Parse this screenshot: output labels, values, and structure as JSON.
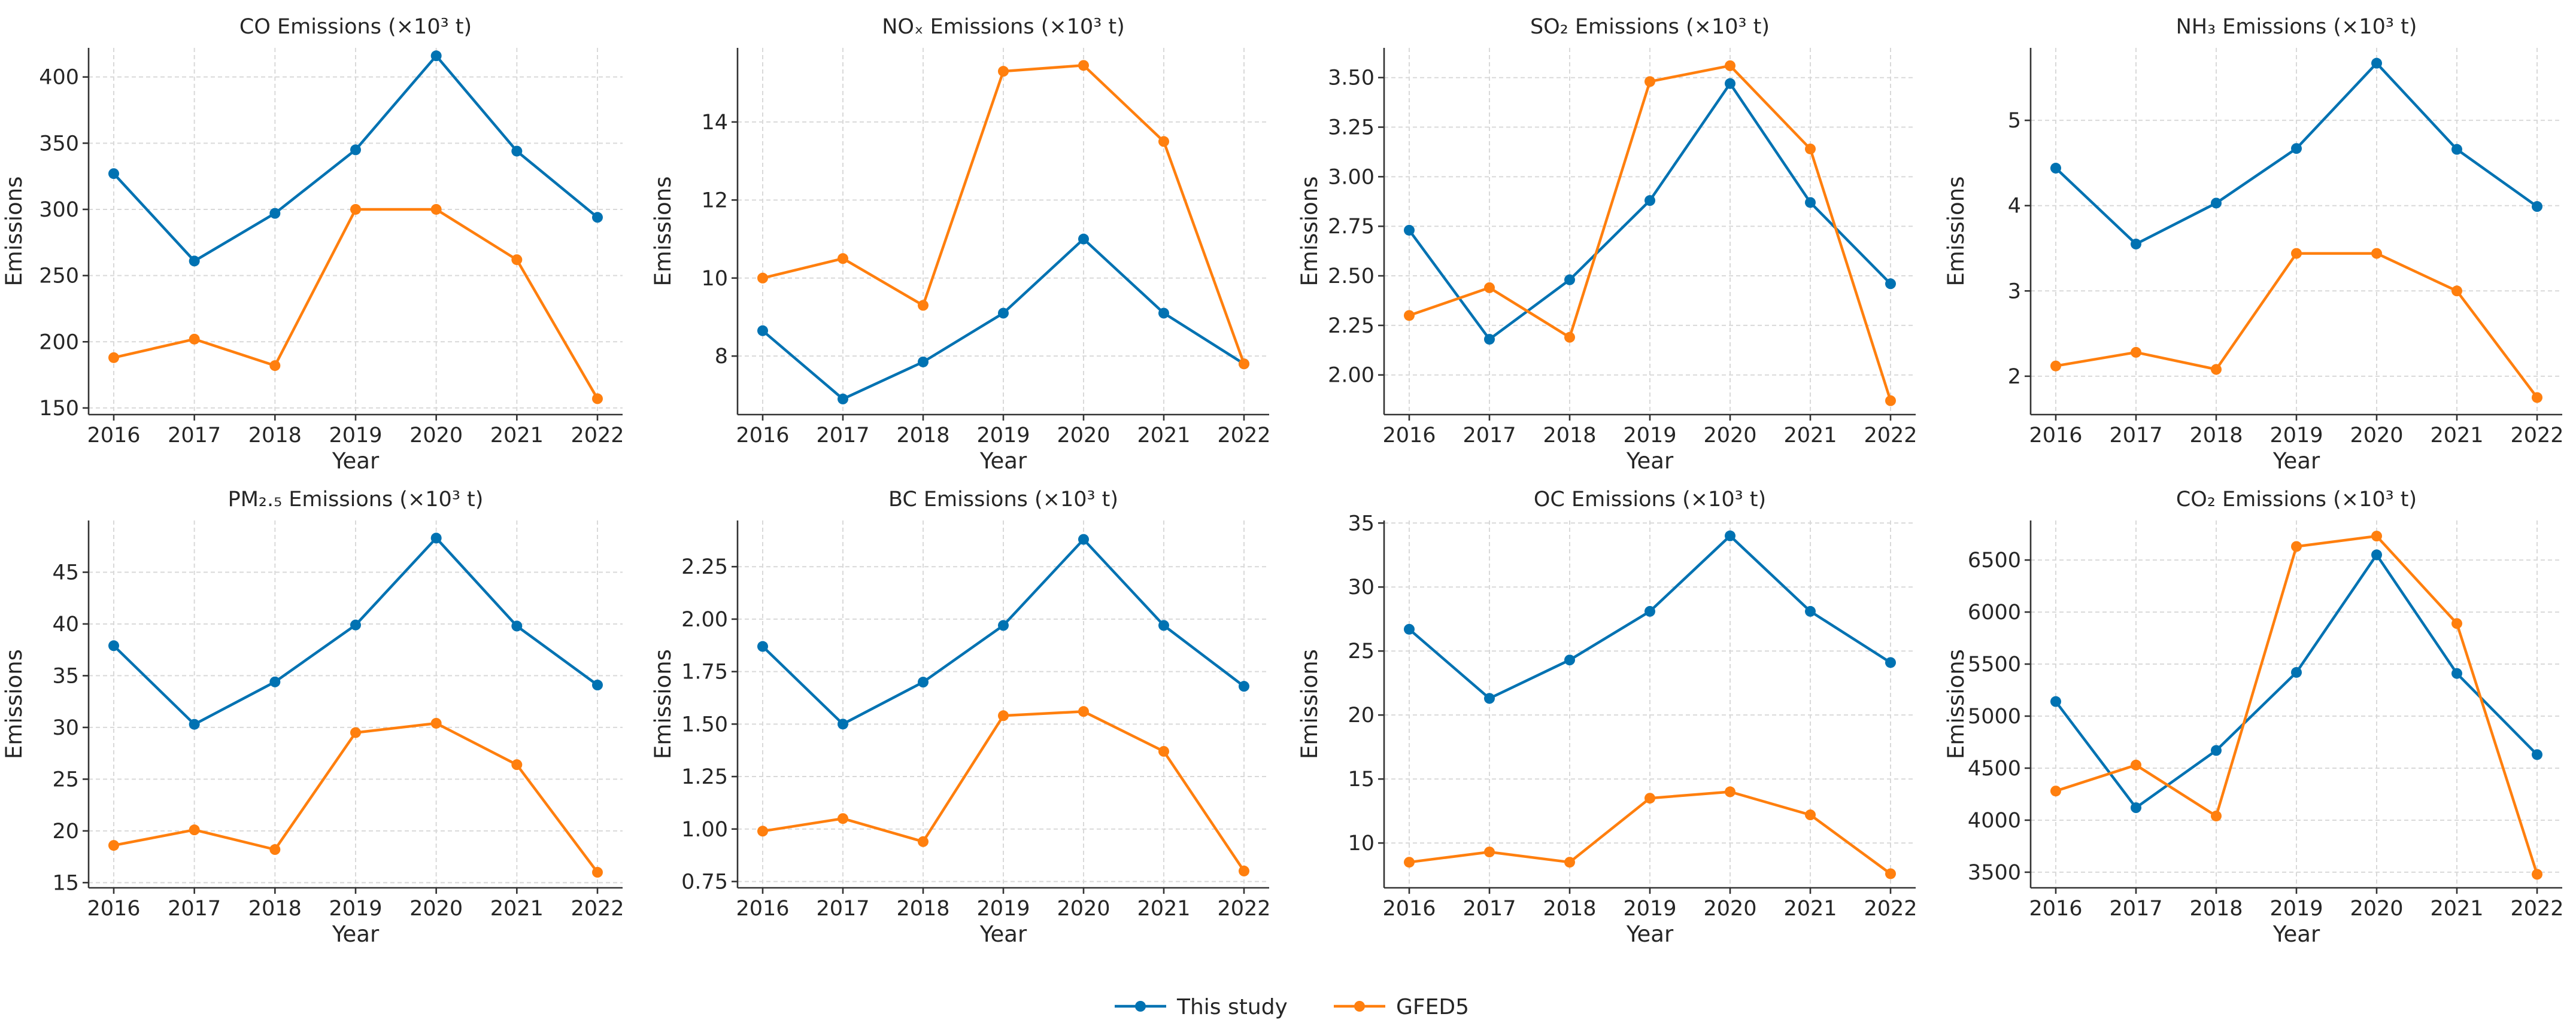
{
  "legend": [
    {
      "name": "This study",
      "color": "#0072B2"
    },
    {
      "name": "GFED5",
      "color": "#FF7F0E"
    }
  ],
  "chart_data": [
    {
      "type": "line",
      "title": "CO Emissions (×10³ t)",
      "xlabel": "Year",
      "ylabel": "Emissions",
      "x": [
        2016,
        2017,
        2018,
        2019,
        2020,
        2021,
        2022
      ],
      "yticks": [
        150,
        200,
        250,
        300,
        350,
        400
      ],
      "ylim": [
        145,
        422
      ],
      "grid": true,
      "series": [
        {
          "name": "This study",
          "values": [
            327,
            261,
            297,
            345,
            416,
            344,
            294
          ]
        },
        {
          "name": "GFED5",
          "values": [
            188,
            202,
            182,
            300,
            300,
            262,
            157
          ]
        }
      ]
    },
    {
      "type": "line",
      "title": "NOₓ Emissions (×10³ t)",
      "xlabel": "Year",
      "ylabel": "Emissions",
      "x": [
        2016,
        2017,
        2018,
        2019,
        2020,
        2021,
        2022
      ],
      "yticks": [
        8,
        10,
        12,
        14
      ],
      "ylim": [
        6.5,
        15.9
      ],
      "grid": true,
      "series": [
        {
          "name": "This study",
          "values": [
            8.65,
            6.9,
            7.85,
            9.1,
            11.0,
            9.1,
            7.8
          ]
        },
        {
          "name": "GFED5",
          "values": [
            10.0,
            10.5,
            9.3,
            15.3,
            15.45,
            13.5,
            7.8
          ]
        }
      ]
    },
    {
      "type": "line",
      "title": "SO₂ Emissions (×10³ t)",
      "xlabel": "Year",
      "ylabel": "Emissions",
      "x": [
        2016,
        2017,
        2018,
        2019,
        2020,
        2021,
        2022
      ],
      "yticks": [
        2.0,
        2.25,
        2.5,
        2.75,
        3.0,
        3.25,
        3.5
      ],
      "ytick_labels": [
        "2.00",
        "2.25",
        "2.50",
        "2.75",
        "3.00",
        "3.25",
        "3.50"
      ],
      "ylim": [
        1.8,
        3.65
      ],
      "grid": true,
      "series": [
        {
          "name": "This study",
          "values": [
            2.73,
            2.18,
            2.48,
            2.88,
            3.47,
            2.87,
            2.46
          ]
        },
        {
          "name": "GFED5",
          "values": [
            2.3,
            2.44,
            2.19,
            3.48,
            3.56,
            3.14,
            1.87
          ]
        }
      ]
    },
    {
      "type": "line",
      "title": "NH₃ Emissions (×10³ t)",
      "xlabel": "Year",
      "ylabel": "Emissions",
      "x": [
        2016,
        2017,
        2018,
        2019,
        2020,
        2021,
        2022
      ],
      "yticks": [
        2,
        3,
        4,
        5
      ],
      "ylim": [
        1.55,
        5.85
      ],
      "grid": true,
      "series": [
        {
          "name": "This study",
          "values": [
            4.44,
            3.55,
            4.03,
            4.67,
            5.67,
            4.66,
            3.99
          ]
        },
        {
          "name": "GFED5",
          "values": [
            2.12,
            2.28,
            2.08,
            3.44,
            3.44,
            3.0,
            1.75
          ]
        }
      ]
    },
    {
      "type": "line",
      "title": "PM₂.₅ Emissions (×10³ t)",
      "xlabel": "Year",
      "ylabel": "Emissions",
      "x": [
        2016,
        2017,
        2018,
        2019,
        2020,
        2021,
        2022
      ],
      "yticks": [
        15,
        20,
        25,
        30,
        35,
        40,
        45
      ],
      "ylim": [
        14.5,
        50
      ],
      "grid": true,
      "series": [
        {
          "name": "This study",
          "values": [
            37.9,
            30.3,
            34.4,
            39.9,
            48.3,
            39.8,
            34.1
          ]
        },
        {
          "name": "GFED5",
          "values": [
            18.6,
            20.1,
            18.2,
            29.5,
            30.4,
            26.4,
            16.0
          ]
        }
      ]
    },
    {
      "type": "line",
      "title": "BC Emissions (×10³ t)",
      "xlabel": "Year",
      "ylabel": "Emissions",
      "x": [
        2016,
        2017,
        2018,
        2019,
        2020,
        2021,
        2022
      ],
      "yticks": [
        0.75,
        1.0,
        1.25,
        1.5,
        1.75,
        2.0,
        2.25
      ],
      "ytick_labels": [
        "0.75",
        "1.00",
        "1.25",
        "1.50",
        "1.75",
        "2.00",
        "2.25"
      ],
      "ylim": [
        0.72,
        2.47
      ],
      "grid": true,
      "series": [
        {
          "name": "This study",
          "values": [
            1.87,
            1.5,
            1.7,
            1.97,
            2.38,
            1.97,
            1.68
          ]
        },
        {
          "name": "GFED5",
          "values": [
            0.99,
            1.05,
            0.94,
            1.54,
            1.56,
            1.37,
            0.8
          ]
        }
      ]
    },
    {
      "type": "line",
      "title": "OC Emissions (×10³ t)",
      "xlabel": "Year",
      "ylabel": "Emissions",
      "x": [
        2016,
        2017,
        2018,
        2019,
        2020,
        2021,
        2022
      ],
      "yticks": [
        10,
        15,
        20,
        25,
        30,
        35
      ],
      "ylim": [
        6.5,
        35.2
      ],
      "grid": true,
      "series": [
        {
          "name": "This study",
          "values": [
            26.7,
            21.3,
            24.3,
            28.1,
            34.0,
            28.1,
            24.1
          ]
        },
        {
          "name": "GFED5",
          "values": [
            8.5,
            9.3,
            8.5,
            13.5,
            14.0,
            12.2,
            7.6
          ]
        }
      ]
    },
    {
      "type": "line",
      "title": "CO₂ Emissions (×10³ t)",
      "xlabel": "Year",
      "ylabel": "Emissions",
      "x": [
        2016,
        2017,
        2018,
        2019,
        2020,
        2021,
        2022
      ],
      "yticks": [
        3500,
        4000,
        4500,
        5000,
        5500,
        6000,
        6500
      ],
      "ylim": [
        3350,
        6880
      ],
      "grid": true,
      "series": [
        {
          "name": "This study",
          "values": [
            5140,
            4120,
            4670,
            5420,
            6550,
            5410,
            4630
          ]
        },
        {
          "name": "GFED5",
          "values": [
            4280,
            4530,
            4040,
            6630,
            6730,
            5890,
            3480
          ]
        }
      ]
    }
  ]
}
